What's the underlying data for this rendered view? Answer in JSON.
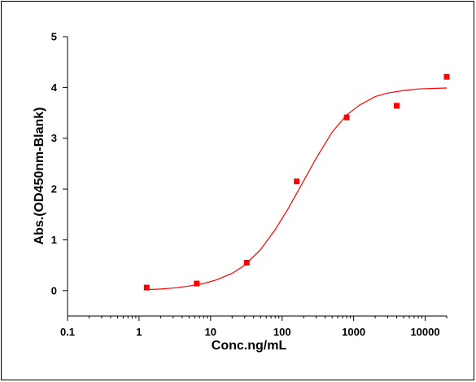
{
  "chart_data": {
    "type": "scatter",
    "title": "",
    "xlabel": "Conc.ng/mL",
    "ylabel": "Abs.(OD450nm-Blank)",
    "x_scale": "log",
    "xlim": [
      0.1,
      20000
    ],
    "ylim": [
      -0.5,
      5
    ],
    "x_ticks": [
      0.1,
      1,
      10,
      100,
      1000,
      10000
    ],
    "x_tick_labels": [
      "0.1",
      "1",
      "10",
      "100",
      "1000",
      "10000"
    ],
    "y_ticks": [
      0,
      1,
      2,
      3,
      4,
      5
    ],
    "y_tick_labels": [
      "0",
      "1",
      "2",
      "3",
      "4",
      "5"
    ],
    "grid": false,
    "series": [
      {
        "kind": "points",
        "marker": "square",
        "color": "#ff0000",
        "x": [
          1.28,
          6.4,
          32,
          160,
          800,
          4000,
          20000
        ],
        "y": [
          0.06,
          0.14,
          0.55,
          2.15,
          3.41,
          3.64,
          4.21
        ]
      },
      {
        "kind": "fit-curve",
        "color": "#ff0000",
        "x": [
          1.3,
          2,
          3,
          5,
          8,
          12,
          20,
          30,
          50,
          80,
          120,
          200,
          300,
          500,
          800,
          1200,
          2000,
          3000,
          5000,
          8000,
          12000,
          20000
        ],
        "y": [
          0.02,
          0.03,
          0.05,
          0.09,
          0.14,
          0.21,
          0.34,
          0.5,
          0.81,
          1.2,
          1.6,
          2.16,
          2.61,
          3.12,
          3.46,
          3.65,
          3.82,
          3.89,
          3.94,
          3.97,
          3.98,
          3.99
        ]
      }
    ]
  }
}
